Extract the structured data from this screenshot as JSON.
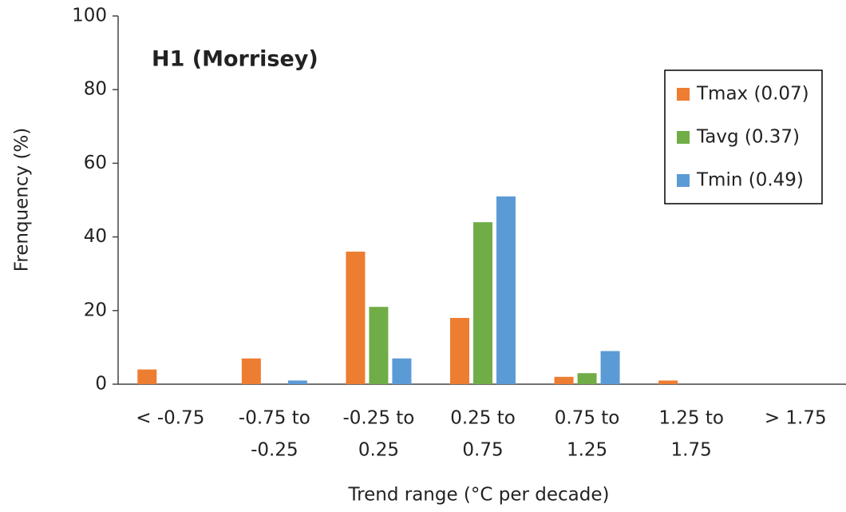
{
  "chart_data": {
    "type": "bar",
    "annotation": "H1 (Morrisey)",
    "y_label": "Frenquency (%)",
    "x_label": "Trend range (°C per decade)",
    "categories": [
      [
        "< -0.75"
      ],
      [
        "-0.75 to",
        "-0.25"
      ],
      [
        "-0.25 to",
        "0.25"
      ],
      [
        "0.25 to",
        "0.75"
      ],
      [
        "0.75 to",
        "1.25"
      ],
      [
        "1.25 to",
        "1.75"
      ],
      [
        "> 1.75"
      ]
    ],
    "series": [
      {
        "name": "Tmax (0.07)",
        "color": "#ed7d31",
        "values": [
          4,
          7,
          36,
          18,
          2,
          1,
          0
        ]
      },
      {
        "name": "Tavg (0.37)",
        "color": "#70ad47",
        "values": [
          0,
          0,
          21,
          44,
          3,
          0,
          0
        ]
      },
      {
        "name": "Tmin (0.49)",
        "color": "#5b9bd5",
        "values": [
          0,
          1,
          7,
          51,
          9,
          0,
          0
        ]
      }
    ],
    "ylim": [
      0,
      100
    ],
    "yticks": [
      0,
      20,
      40,
      60,
      80,
      100
    ],
    "grid": false,
    "legend": "top-right"
  }
}
